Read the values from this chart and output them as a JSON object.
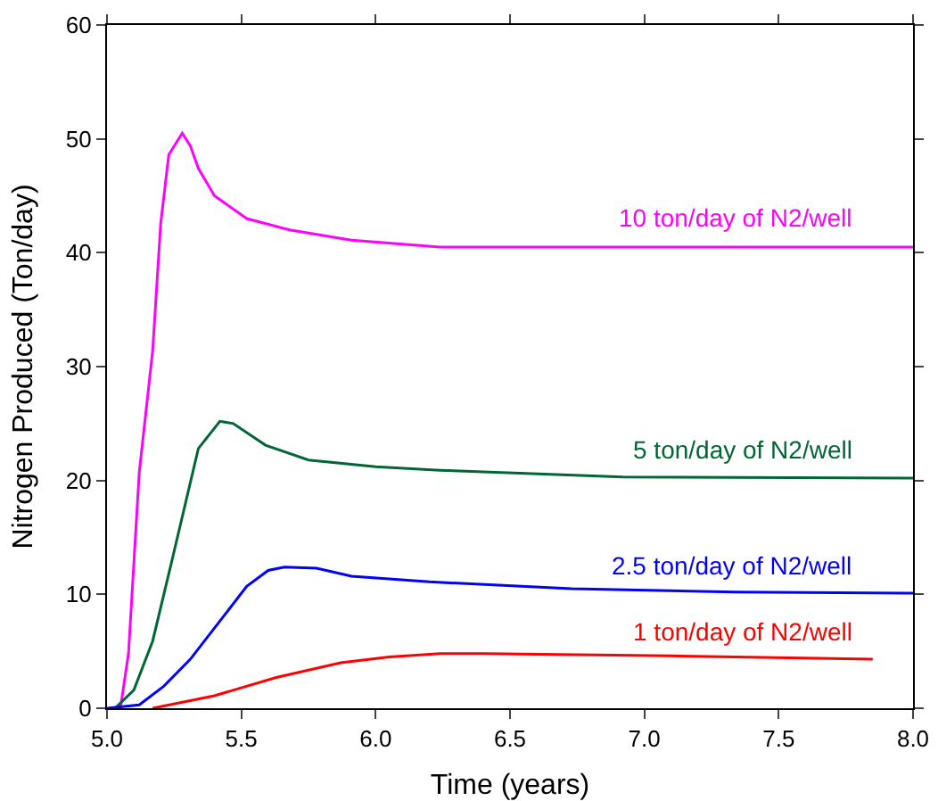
{
  "chart_data": {
    "type": "line",
    "xlabel": "Time (years)",
    "ylabel": "Nitrogen Produced (Ton/day)",
    "xlim": [
      5,
      8
    ],
    "xticks": [
      {
        "value": 5,
        "label": "5.0"
      },
      {
        "value": 5.5,
        "label": "5.5"
      },
      {
        "value": 6,
        "label": "6.0"
      },
      {
        "value": 6.5,
        "label": "6.5"
      },
      {
        "value": 7,
        "label": "7.0"
      },
      {
        "value": 7.5,
        "label": "7.5"
      },
      {
        "value": 8,
        "label": "8.0"
      }
    ],
    "ylim": [
      0,
      60
    ],
    "yticks": [
      0,
      10,
      20,
      30,
      40,
      50,
      60
    ],
    "grid": false,
    "legend": false,
    "marker": "none",
    "line_style": "solid",
    "series": [
      {
        "name": "10 ton/day of N2/well",
        "color": "#ff00ff",
        "x": [
          5.05,
          5.08,
          5.12,
          5.17,
          5.2,
          5.23,
          5.28,
          5.31,
          5.34,
          5.4,
          5.52,
          5.68,
          5.91,
          6.24,
          7,
          8
        ],
        "values": [
          0,
          4.8,
          20.7,
          31.4,
          42.6,
          48.6,
          50.5,
          49.4,
          47.4,
          45,
          43,
          42,
          41.1,
          40.5,
          40.5,
          40.5
        ]
      },
      {
        "name": "5 ton/day of N2/well",
        "color": "#006633",
        "x": [
          5.03,
          5.1,
          5.17,
          5.24,
          5.34,
          5.42,
          5.47,
          5.59,
          5.75,
          6,
          6.24,
          6.92,
          8
        ],
        "values": [
          0,
          1.6,
          5.9,
          12.8,
          22.8,
          25.2,
          25,
          23.1,
          21.8,
          21.2,
          20.9,
          20.3,
          20.2
        ]
      },
      {
        "name": "2.5 ton/day of N2/well",
        "color": "#0000ff",
        "x": [
          5,
          5.12,
          5.21,
          5.31,
          5.52,
          5.6,
          5.66,
          5.78,
          5.91,
          6.2,
          6.73,
          7.34,
          8
        ],
        "values": [
          0,
          0.3,
          1.9,
          4.3,
          10.7,
          12.1,
          12.4,
          12.3,
          11.6,
          11.1,
          10.5,
          10.2,
          10.1
        ]
      },
      {
        "name": "1 ton/day of N2/well",
        "color": "#ff0000",
        "x": [
          5.17,
          5.4,
          5.63,
          5.87,
          6.05,
          6.24,
          6.4,
          7.1,
          7.85
        ],
        "values": [
          0,
          1.1,
          2.7,
          4,
          4.5,
          4.8,
          4.8,
          4.6,
          4.3
        ]
      }
    ]
  }
}
